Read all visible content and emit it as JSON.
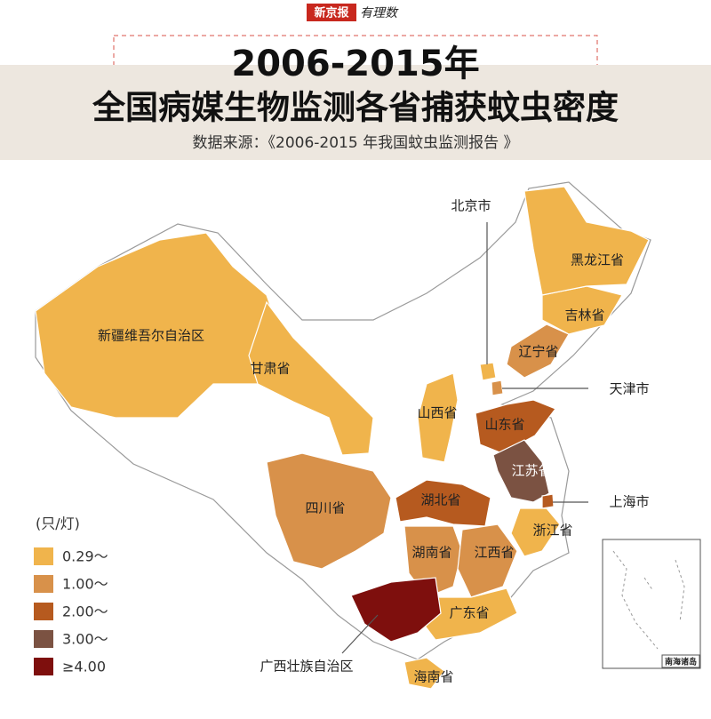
{
  "header": {
    "brand": "新京报",
    "brand2": "有理数",
    "title_line1": "2006-2015年",
    "title_line2": "全国病媒生物监测各省捕获蚊虫密度",
    "source": "数据来源：《2006-2015 年我国蚊虫监测报告 》"
  },
  "legend": {
    "unit": "(只/灯)",
    "items": [
      {
        "label": "0.29～",
        "color": "#f0b44c"
      },
      {
        "label": "1.00～",
        "color": "#d8914a"
      },
      {
        "label": "2.00～",
        "color": "#b65a1f"
      },
      {
        "label": "3.00～",
        "color": "#7b5242"
      },
      {
        "label": "≥4.00",
        "color": "#7e0f0d"
      }
    ]
  },
  "regions": [
    {
      "label": "新疆维吾尔自治区",
      "level": 0
    },
    {
      "label": "甘肃省",
      "level": 0
    },
    {
      "label": "四川省",
      "level": 1
    },
    {
      "label": "山西省",
      "level": 0
    },
    {
      "label": "山东省",
      "level": 2
    },
    {
      "label": "江苏省",
      "level": 3
    },
    {
      "label": "上海市",
      "level": 2
    },
    {
      "label": "浙江省",
      "level": 0
    },
    {
      "label": "湖北省",
      "level": 2
    },
    {
      "label": "湖南省",
      "level": 1
    },
    {
      "label": "江西省",
      "level": 1
    },
    {
      "label": "广东省",
      "level": 0
    },
    {
      "label": "广西壮族自治区",
      "level": 4
    },
    {
      "label": "海南省",
      "level": 0
    },
    {
      "label": "辽宁省",
      "level": 1
    },
    {
      "label": "吉林省",
      "level": 0
    },
    {
      "label": "黑龙江省",
      "level": 0
    },
    {
      "label": "北京市",
      "level": 0
    },
    {
      "label": "天津市",
      "level": 1
    }
  ],
  "inset_label": "南海诸岛"
}
